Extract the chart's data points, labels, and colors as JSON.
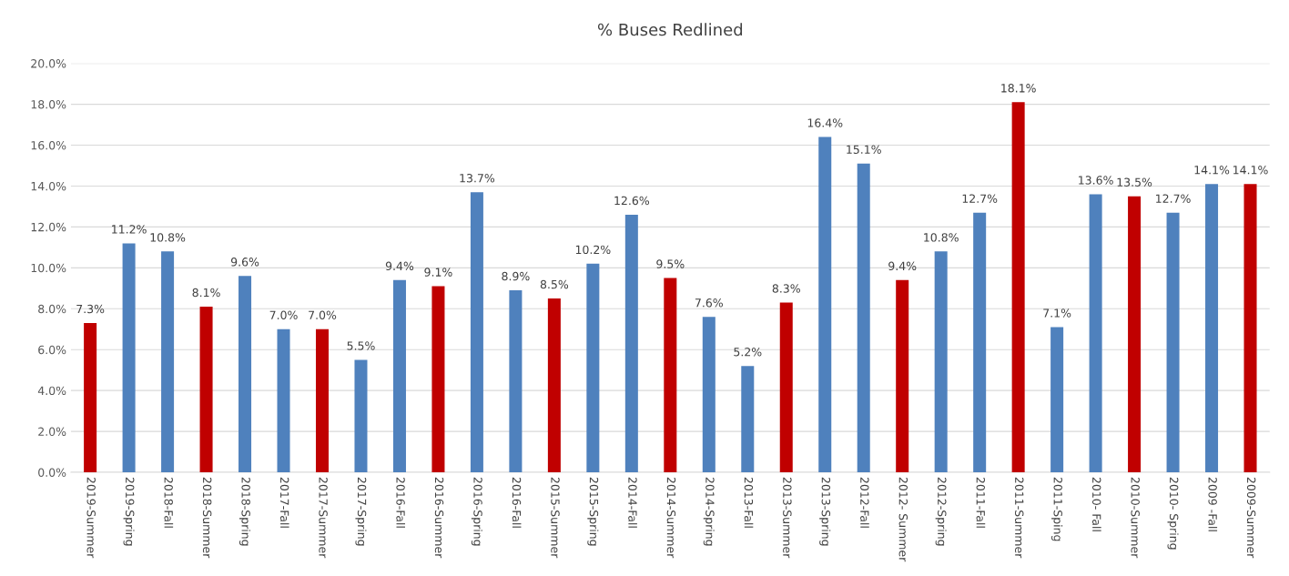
{
  "chart_data": {
    "type": "bar",
    "title": "% Buses Redlined",
    "categories": [
      "2019-Summer",
      "2019-Spring",
      "2018-Fall",
      "2018-Summer",
      "2018-Spring",
      "2017-Fall",
      "2017-Summer",
      "2017-Spring",
      "2016-Fall",
      "2016-Summer",
      "2016-Spring",
      "2016-Fall",
      "2015-Summer",
      "2015-Spring",
      "2014-Fall",
      "2014-Summer",
      "2014-Spring",
      "2013-Fall",
      "2013-Summer",
      "2013-Spring",
      "2012-Fall",
      "2012- Summer",
      "2012-Spring",
      "2011-Fall",
      "2011-Summer",
      "2011-Sping",
      "2010- Fall",
      "2010-Summer",
      "2010- Spring",
      "2009 -Fall",
      "2009-Summer"
    ],
    "values": [
      7.3,
      11.2,
      10.8,
      8.1,
      9.6,
      7.0,
      7.0,
      5.5,
      9.4,
      9.1,
      13.7,
      8.9,
      8.5,
      10.2,
      12.6,
      9.5,
      7.6,
      5.2,
      8.3,
      16.4,
      15.1,
      9.4,
      10.8,
      12.7,
      18.1,
      7.1,
      13.6,
      13.5,
      12.7,
      14.1,
      14.1
    ],
    "colors": [
      "#c00000",
      "#4f81bd",
      "#4f81bd",
      "#c00000",
      "#4f81bd",
      "#4f81bd",
      "#c00000",
      "#4f81bd",
      "#4f81bd",
      "#c00000",
      "#4f81bd",
      "#4f81bd",
      "#c00000",
      "#4f81bd",
      "#4f81bd",
      "#c00000",
      "#4f81bd",
      "#4f81bd",
      "#c00000",
      "#4f81bd",
      "#4f81bd",
      "#c00000",
      "#4f81bd",
      "#4f81bd",
      "#c00000",
      "#4f81bd",
      "#4f81bd",
      "#c00000",
      "#4f81bd",
      "#4f81bd",
      "#c00000"
    ],
    "value_labels": [
      "7.3%",
      "11.2%",
      "10.8%",
      "8.1%",
      "9.6%",
      "7.0%",
      "7.0%",
      "5.5%",
      "9.4%",
      "9.1%",
      "13.7%",
      "8.9%",
      "8.5%",
      "10.2%",
      "12.6%",
      "9.5%",
      "7.6%",
      "5.2%",
      "8.3%",
      "16.4%",
      "15.1%",
      "9.4%",
      "10.8%",
      "12.7%",
      "18.1%",
      "7.1%",
      "13.6%",
      "13.5%",
      "12.7%",
      "14.1%",
      "14.1%"
    ],
    "ylim": [
      0,
      20
    ],
    "yticks": [
      {
        "value": 0,
        "label": "0.0%"
      },
      {
        "value": 2,
        "label": "2.0%"
      },
      {
        "value": 4,
        "label": "4.0%"
      },
      {
        "value": 6,
        "label": "6.0%"
      },
      {
        "value": 8,
        "label": "8.0%"
      },
      {
        "value": 10,
        "label": "10.0%"
      },
      {
        "value": 12,
        "label": "12.0%"
      },
      {
        "value": 14,
        "label": "14.0%"
      },
      {
        "value": 16,
        "label": "16.0%"
      },
      {
        "value": 18,
        "label": "18.0%"
      },
      {
        "value": 20,
        "label": "20.0%"
      }
    ],
    "grid": "y"
  }
}
